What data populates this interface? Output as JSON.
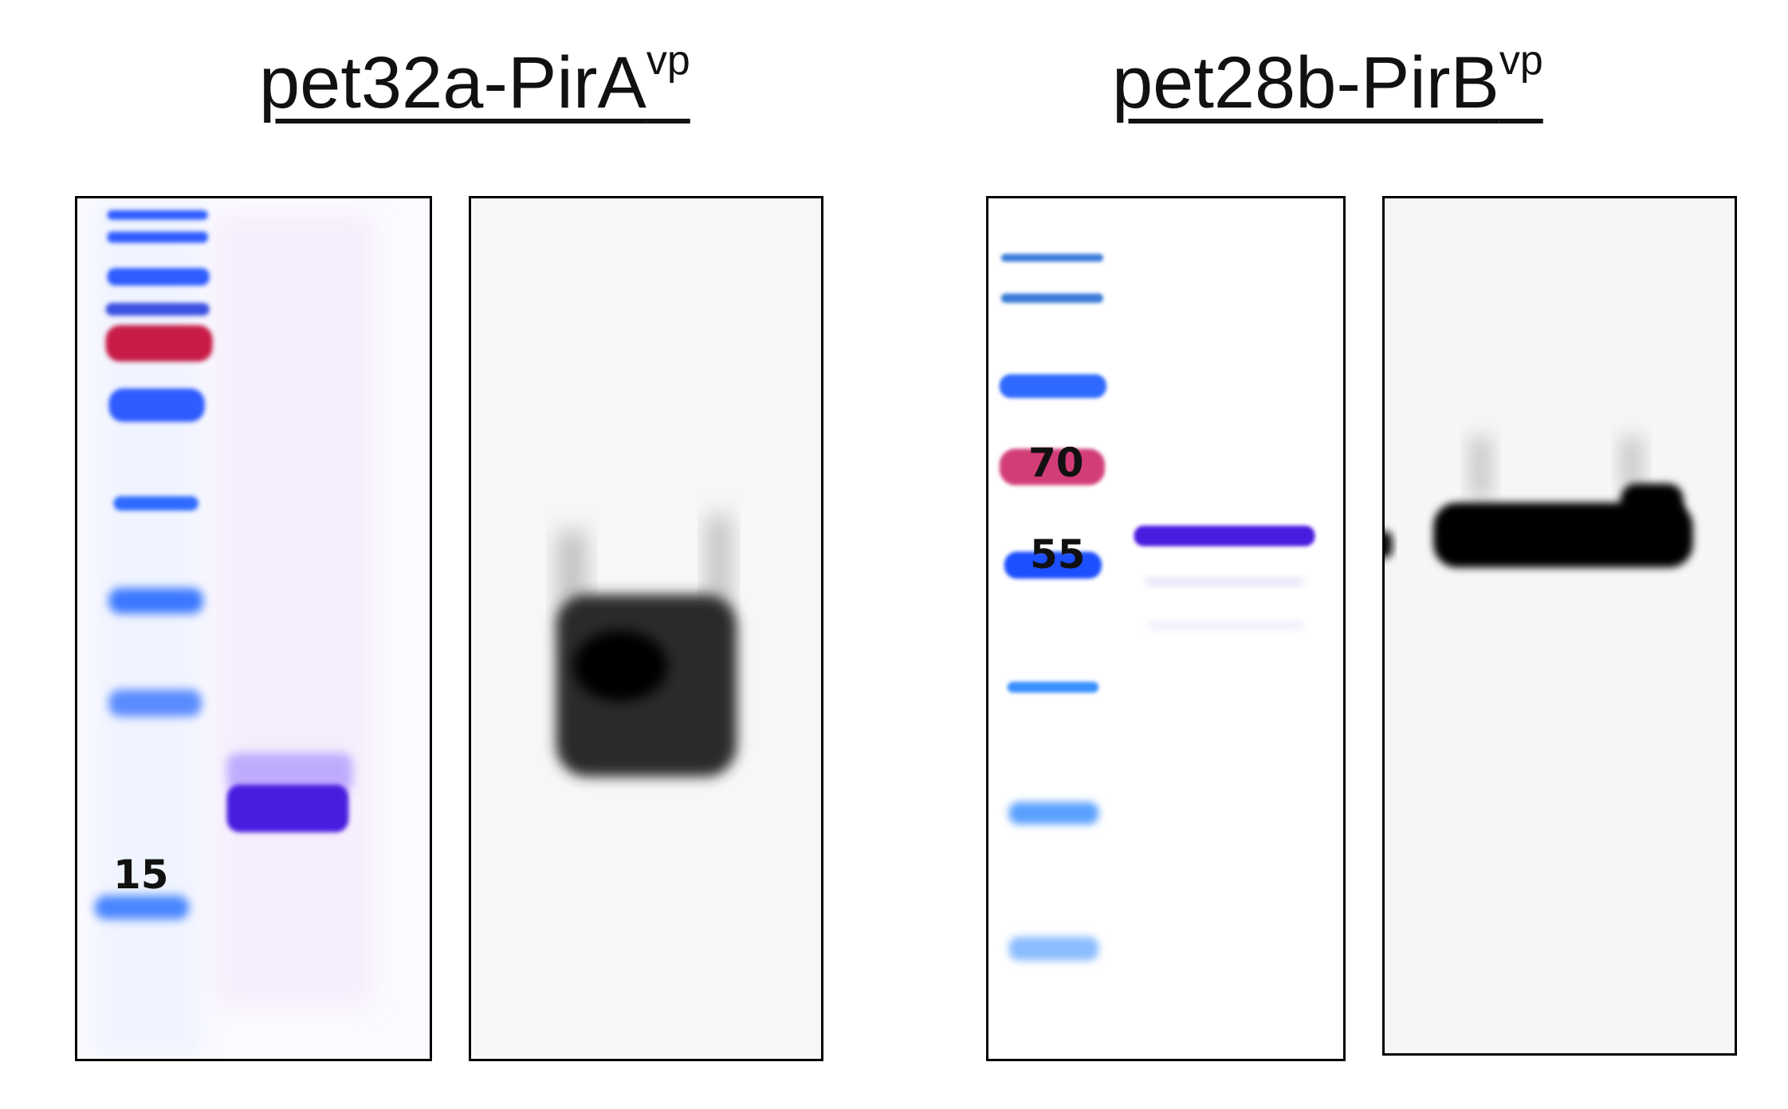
{
  "titles": {
    "left": {
      "main": "pet32a-PirA",
      "sup": "vp"
    },
    "right": {
      "main": "pet28b-PirB",
      "sup": "vp"
    }
  },
  "markers": {
    "left_gel": "15",
    "right_gel_upper": "70",
    "right_gel_lower": "55"
  },
  "colors": {
    "ladder_blue": "#2f5bff",
    "ladder_red": "#c81e46",
    "ladder_pink": "#d23c78",
    "protein_band": "#4a1fe0",
    "blot_band": "#000000"
  }
}
